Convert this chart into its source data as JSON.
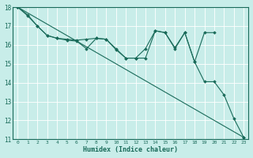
{
  "xlabel": "Humidex (Indice chaleur)",
  "background_color": "#c8ede9",
  "grid_color": "#ffffff",
  "line_color": "#1a6b5a",
  "xlim": [
    -0.5,
    23.5
  ],
  "ylim": [
    11,
    18
  ],
  "xticks": [
    0,
    1,
    2,
    3,
    4,
    5,
    6,
    7,
    8,
    9,
    10,
    11,
    12,
    13,
    14,
    15,
    16,
    17,
    18,
    19,
    20,
    21,
    22,
    23
  ],
  "yticks": [
    11,
    12,
    13,
    14,
    15,
    16,
    17,
    18
  ],
  "line1_x": [
    0,
    1,
    2,
    3,
    4,
    5,
    6,
    7,
    8,
    9,
    10,
    11,
    12,
    13,
    14,
    15,
    16,
    17,
    18,
    19,
    20
  ],
  "line1_y": [
    18,
    17.6,
    17.0,
    16.5,
    16.35,
    16.3,
    16.25,
    16.3,
    16.35,
    16.3,
    15.8,
    15.3,
    15.3,
    15.8,
    16.75,
    16.65,
    15.85,
    16.65,
    15.1,
    16.65,
    16.65
  ],
  "line2_x": [
    0,
    1,
    2,
    3,
    4,
    5,
    6,
    7,
    8,
    9,
    10,
    11,
    12,
    13,
    14,
    15,
    16,
    17,
    18,
    19,
    20,
    21,
    22,
    23
  ],
  "line2_y": [
    18,
    17.55,
    17.0,
    16.5,
    16.35,
    16.25,
    16.2,
    15.8,
    16.35,
    16.3,
    15.75,
    15.3,
    15.3,
    15.3,
    16.75,
    16.65,
    15.8,
    16.65,
    15.1,
    14.05,
    14.05,
    13.35,
    12.1,
    11.1
  ],
  "line3_x": [
    0,
    23
  ],
  "line3_y": [
    18,
    11.1
  ]
}
